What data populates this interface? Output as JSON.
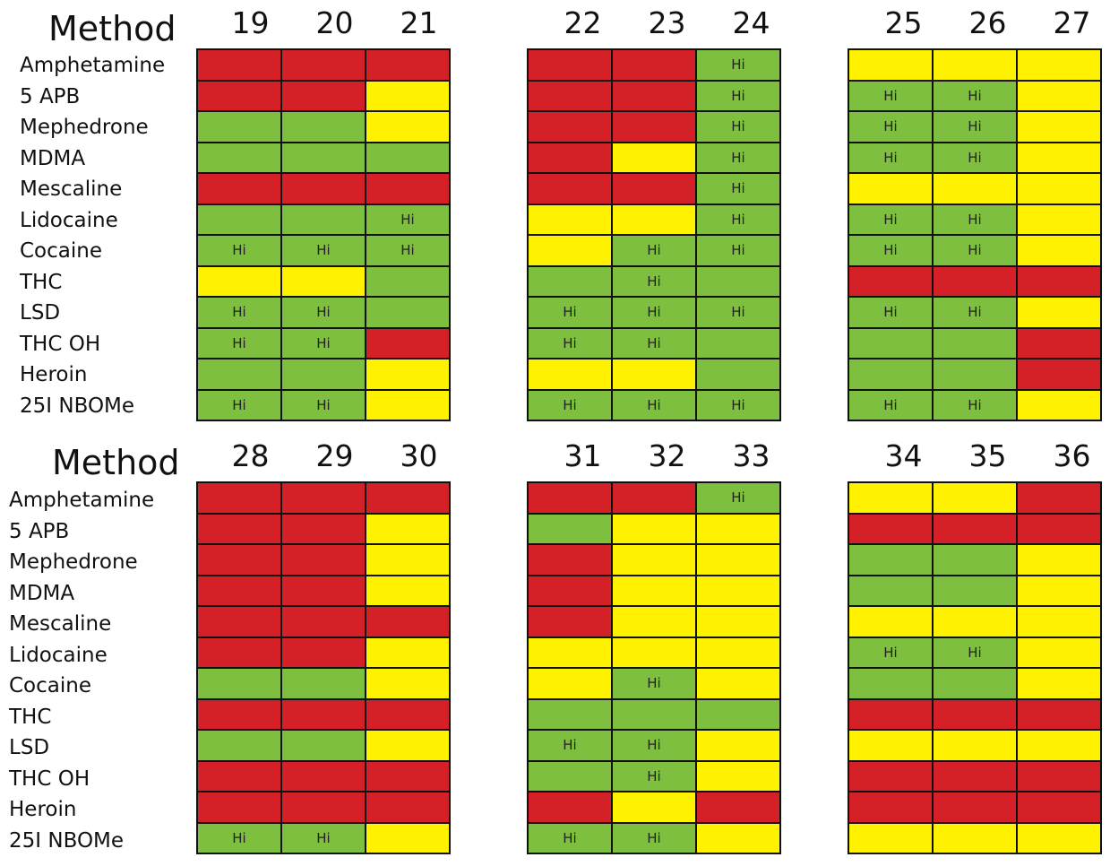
{
  "colors": {
    "red": "#d42127",
    "green": "#7fbf3f",
    "yellow": "#fff200",
    "border": "#111111"
  },
  "chart_data": {
    "type": "heatmap",
    "legend_codes": {
      "R": "red",
      "G": "green",
      "Y": "yellow"
    },
    "cell_annotation": "Hi",
    "sections": [
      {
        "title": "Method",
        "rows": [
          "Amphetamine",
          "5 APB",
          "Mephedrone",
          "MDMA",
          "Mescaline",
          "Lidocaine",
          "Cocaine",
          "THC",
          "LSD",
          "THC OH",
          "Heroin",
          "25I NBOMe"
        ],
        "groups": [
          {
            "methods": [
              "19",
              "20",
              "21"
            ],
            "colors": [
              [
                "R",
                "R",
                "R"
              ],
              [
                "R",
                "R",
                "Y"
              ],
              [
                "G",
                "G",
                "Y"
              ],
              [
                "G",
                "G",
                "G"
              ],
              [
                "R",
                "R",
                "R"
              ],
              [
                "G",
                "G",
                "G"
              ],
              [
                "G",
                "G",
                "G"
              ],
              [
                "Y",
                "Y",
                "G"
              ],
              [
                "G",
                "G",
                "G"
              ],
              [
                "G",
                "G",
                "R"
              ],
              [
                "G",
                "G",
                "Y"
              ],
              [
                "G",
                "G",
                "Y"
              ]
            ],
            "labels": [
              [
                "",
                "",
                ""
              ],
              [
                "",
                "",
                ""
              ],
              [
                "",
                "",
                ""
              ],
              [
                "",
                "",
                ""
              ],
              [
                "",
                "",
                ""
              ],
              [
                "",
                "",
                "Hi"
              ],
              [
                "Hi",
                "Hi",
                "Hi"
              ],
              [
                "",
                "",
                ""
              ],
              [
                "Hi",
                "Hi",
                ""
              ],
              [
                "Hi",
                "Hi",
                ""
              ],
              [
                "",
                "",
                ""
              ],
              [
                "Hi",
                "Hi",
                ""
              ]
            ]
          },
          {
            "methods": [
              "22",
              "23",
              "24"
            ],
            "colors": [
              [
                "R",
                "R",
                "G"
              ],
              [
                "R",
                "R",
                "G"
              ],
              [
                "R",
                "R",
                "G"
              ],
              [
                "R",
                "Y",
                "G"
              ],
              [
                "R",
                "R",
                "G"
              ],
              [
                "Y",
                "Y",
                "G"
              ],
              [
                "Y",
                "G",
                "G"
              ],
              [
                "G",
                "G",
                "G"
              ],
              [
                "G",
                "G",
                "G"
              ],
              [
                "G",
                "G",
                "G"
              ],
              [
                "Y",
                "Y",
                "G"
              ],
              [
                "G",
                "G",
                "G"
              ]
            ],
            "labels": [
              [
                "",
                "",
                "Hi"
              ],
              [
                "",
                "",
                "Hi"
              ],
              [
                "",
                "",
                "Hi"
              ],
              [
                "",
                "",
                "Hi"
              ],
              [
                "",
                "",
                "Hi"
              ],
              [
                "",
                "",
                "Hi"
              ],
              [
                "",
                "Hi",
                "Hi"
              ],
              [
                "",
                "Hi",
                ""
              ],
              [
                "Hi",
                "Hi",
                "Hi"
              ],
              [
                "Hi",
                "Hi",
                ""
              ],
              [
                "",
                "",
                ""
              ],
              [
                "Hi",
                "Hi",
                "Hi"
              ]
            ]
          },
          {
            "methods": [
              "25",
              "26",
              "27"
            ],
            "colors": [
              [
                "Y",
                "Y",
                "Y"
              ],
              [
                "G",
                "G",
                "Y"
              ],
              [
                "G",
                "G",
                "Y"
              ],
              [
                "G",
                "G",
                "Y"
              ],
              [
                "Y",
                "Y",
                "Y"
              ],
              [
                "G",
                "G",
                "Y"
              ],
              [
                "G",
                "G",
                "Y"
              ],
              [
                "R",
                "R",
                "R"
              ],
              [
                "G",
                "G",
                "Y"
              ],
              [
                "G",
                "G",
                "R"
              ],
              [
                "G",
                "G",
                "R"
              ],
              [
                "G",
                "G",
                "Y"
              ]
            ],
            "labels": [
              [
                "",
                "",
                ""
              ],
              [
                "Hi",
                "Hi",
                ""
              ],
              [
                "Hi",
                "Hi",
                ""
              ],
              [
                "Hi",
                "Hi",
                ""
              ],
              [
                "",
                "",
                ""
              ],
              [
                "Hi",
                "Hi",
                ""
              ],
              [
                "Hi",
                "Hi",
                ""
              ],
              [
                "",
                "",
                ""
              ],
              [
                "Hi",
                "Hi",
                ""
              ],
              [
                "",
                "",
                ""
              ],
              [
                "",
                "",
                ""
              ],
              [
                "Hi",
                "Hi",
                ""
              ]
            ]
          }
        ]
      },
      {
        "title": "Method",
        "rows": [
          "Amphetamine",
          "5 APB",
          "Mephedrone",
          "MDMA",
          "Mescaline",
          "Lidocaine",
          "Cocaine",
          "THC",
          "LSD",
          "THC OH",
          "Heroin",
          "25I NBOMe"
        ],
        "groups": [
          {
            "methods": [
              "28",
              "29",
              "30"
            ],
            "colors": [
              [
                "R",
                "R",
                "R"
              ],
              [
                "R",
                "R",
                "Y"
              ],
              [
                "R",
                "R",
                "Y"
              ],
              [
                "R",
                "R",
                "Y"
              ],
              [
                "R",
                "R",
                "R"
              ],
              [
                "R",
                "R",
                "Y"
              ],
              [
                "G",
                "G",
                "Y"
              ],
              [
                "R",
                "R",
                "R"
              ],
              [
                "G",
                "G",
                "Y"
              ],
              [
                "R",
                "R",
                "R"
              ],
              [
                "R",
                "R",
                "R"
              ],
              [
                "G",
                "G",
                "Y"
              ]
            ],
            "labels": [
              [
                "",
                "",
                ""
              ],
              [
                "",
                "",
                ""
              ],
              [
                "",
                "",
                ""
              ],
              [
                "",
                "",
                ""
              ],
              [
                "",
                "",
                ""
              ],
              [
                "",
                "",
                ""
              ],
              [
                "",
                "",
                ""
              ],
              [
                "",
                "",
                ""
              ],
              [
                "",
                "",
                ""
              ],
              [
                "",
                "",
                ""
              ],
              [
                "",
                "",
                ""
              ],
              [
                "Hi",
                "Hi",
                ""
              ]
            ]
          },
          {
            "methods": [
              "31",
              "32",
              "33"
            ],
            "colors": [
              [
                "R",
                "R",
                "G"
              ],
              [
                "G",
                "Y",
                "Y"
              ],
              [
                "R",
                "Y",
                "Y"
              ],
              [
                "R",
                "Y",
                "Y"
              ],
              [
                "R",
                "Y",
                "Y"
              ],
              [
                "Y",
                "Y",
                "Y"
              ],
              [
                "Y",
                "G",
                "Y"
              ],
              [
                "G",
                "G",
                "G"
              ],
              [
                "G",
                "G",
                "Y"
              ],
              [
                "G",
                "G",
                "Y"
              ],
              [
                "R",
                "Y",
                "R"
              ],
              [
                "G",
                "G",
                "Y"
              ]
            ],
            "labels": [
              [
                "",
                "",
                "Hi"
              ],
              [
                "",
                "",
                ""
              ],
              [
                "",
                "",
                ""
              ],
              [
                "",
                "",
                ""
              ],
              [
                "",
                "",
                ""
              ],
              [
                "",
                "",
                ""
              ],
              [
                "",
                "Hi",
                ""
              ],
              [
                "",
                "",
                ""
              ],
              [
                "Hi",
                "Hi",
                ""
              ],
              [
                "",
                "Hi",
                ""
              ],
              [
                "",
                "",
                ""
              ],
              [
                "Hi",
                "Hi",
                ""
              ]
            ]
          },
          {
            "methods": [
              "34",
              "35",
              "36"
            ],
            "colors": [
              [
                "Y",
                "Y",
                "R"
              ],
              [
                "R",
                "R",
                "R"
              ],
              [
                "G",
                "G",
                "Y"
              ],
              [
                "G",
                "G",
                "Y"
              ],
              [
                "Y",
                "Y",
                "Y"
              ],
              [
                "G",
                "G",
                "Y"
              ],
              [
                "G",
                "G",
                "Y"
              ],
              [
                "R",
                "R",
                "R"
              ],
              [
                "Y",
                "Y",
                "Y"
              ],
              [
                "R",
                "R",
                "R"
              ],
              [
                "R",
                "R",
                "R"
              ],
              [
                "Y",
                "Y",
                "Y"
              ]
            ],
            "labels": [
              [
                "",
                "",
                ""
              ],
              [
                "",
                "",
                ""
              ],
              [
                "",
                "",
                ""
              ],
              [
                "",
                "",
                ""
              ],
              [
                "",
                "",
                ""
              ],
              [
                "Hi",
                "Hi",
                ""
              ],
              [
                "",
                "",
                ""
              ],
              [
                "",
                "",
                ""
              ],
              [
                "",
                "",
                ""
              ],
              [
                "",
                "",
                ""
              ],
              [
                "",
                "",
                ""
              ],
              [
                "",
                "",
                ""
              ]
            ]
          }
        ]
      }
    ]
  }
}
